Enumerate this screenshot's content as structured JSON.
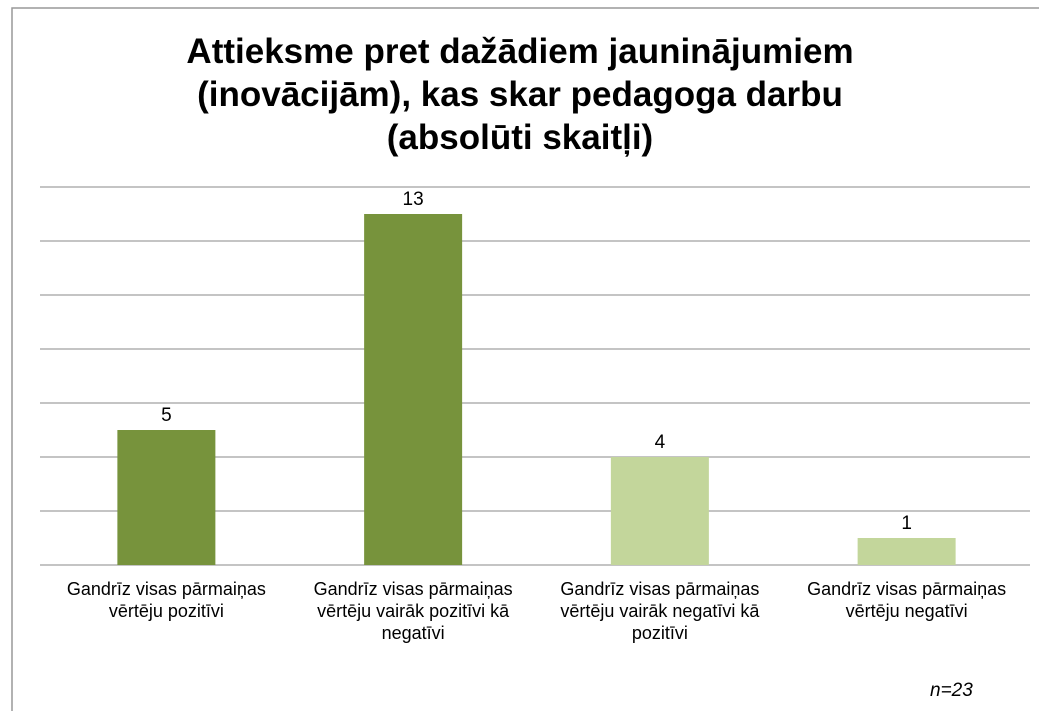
{
  "chart_data": {
    "type": "bar",
    "title": "Attieksme pret dažādiem jauninājumiem (inovācijām), kas skar pedagoga darbu (absolūti skaitļi)",
    "categories": [
      "Gandrīz visas pārmaiņas vērtēju pozitīvi",
      "Gandrīz visas pārmaiņas vērtēju vairāk pozitīvi kā negatīvi",
      "Gandrīz visas pārmaiņas vērtēju vairāk negatīvi kā pozitīvi",
      "Gandrīz visas pārmaiņas vērtēju negatīvi"
    ],
    "values": [
      5,
      13,
      4,
      1
    ],
    "colors": [
      "#77933c",
      "#77933c",
      "#c3d69b",
      "#c3d69b"
    ],
    "ylim": [
      0,
      14
    ],
    "yticks": [
      0,
      2,
      4,
      6,
      8,
      10,
      12,
      14
    ],
    "grid": true,
    "annotation": "n=23"
  }
}
